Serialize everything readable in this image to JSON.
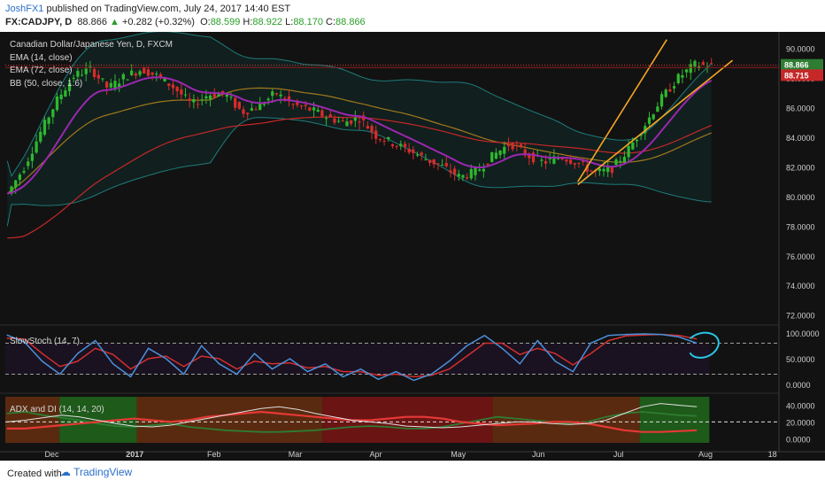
{
  "header": {
    "user": "JoshFX1",
    "published_text": "published on TradingView.com, July 24, 2017 14:40 EST",
    "symbol": "FX:CADJPY, D",
    "last": "88.866",
    "change": "+0.282 (+0.32%)",
    "open_label": "O:",
    "open": "88.599",
    "high_label": "H:",
    "high": "88.922",
    "low_label": "L:",
    "low": "88.170",
    "close_label": "C:",
    "close": "88.866"
  },
  "legend": {
    "title": "Canadian Dollar/Japanese Yen, D, FXCM",
    "ema14": "EMA (14, close)",
    "ema72": "EMA (72, close)",
    "bb": "BB (50, close, 1.6)"
  },
  "colors": {
    "background": "#121212",
    "up": "#2eb82e",
    "down": "#d92b2b",
    "ema14": "#9c27b0",
    "ema72": "#c62828",
    "bb_basis": "#a0781e",
    "bb_band": "#1e7c7c",
    "channel": "#f5a623",
    "stoch_k": "#4a90d9",
    "stoch_d": "#d32f2f",
    "adx": "#e0e0e0",
    "di_plus": "#2e7d32",
    "di_minus": "#e53935",
    "annotation": "#29c5e6"
  },
  "price_labels": {
    "current": "88.866",
    "ema": "88.715"
  },
  "stoch_label": "SlowStoch (14, 7)",
  "adx_label": "ADX and DI (14, 14, 20)",
  "footer": {
    "created_with": "Created with",
    "brand": "TradingView"
  },
  "chart_data": [
    {
      "type": "candlestick",
      "title": "Canadian Dollar/Japanese Yen, D, FXCM",
      "x_ticks": [
        "Dec",
        "2017",
        "Feb",
        "Mar",
        "Apr",
        "May",
        "Jun",
        "Jul",
        "Aug",
        "18"
      ],
      "y_ticks": [
        "90.0000",
        "88.0000",
        "86.0000",
        "84.0000",
        "82.0000",
        "80.0000",
        "78.0000",
        "76.0000",
        "74.0000",
        "72.0000"
      ],
      "ylim": [
        71.5,
        91
      ],
      "close_path": [
        80.2,
        82.0,
        84.4,
        86.6,
        88.2,
        88.6,
        87.3,
        88.1,
        88.6,
        88.1,
        87.3,
        86.2,
        86.9,
        86.9,
        85.7,
        86.1,
        87.0,
        86.2,
        85.9,
        85.4,
        85.0,
        85.3,
        84.1,
        83.6,
        83.1,
        82.5,
        82.0,
        81.3,
        81.7,
        82.8,
        83.6,
        82.8,
        82.3,
        82.7,
        82.3,
        81.6,
        81.8,
        83.1,
        84.8,
        86.6,
        88.0,
        88.9,
        88.87
      ],
      "ema14_last": 88.715,
      "last": 88.866,
      "ema72_note": "EMA (72, close)",
      "bb_note": "BB (50, close, 1.6)"
    },
    {
      "type": "line",
      "title": "SlowStoch (14, 7)",
      "y_ticks": [
        "100.0000",
        "50.0000",
        "0.0000"
      ],
      "ylim": [
        -10,
        110
      ],
      "levels": [
        80,
        20
      ],
      "series_k": [
        96,
        82,
        45,
        20,
        60,
        85,
        40,
        15,
        70,
        50,
        20,
        75,
        40,
        20,
        60,
        30,
        50,
        25,
        40,
        15,
        30,
        10,
        25,
        8,
        20,
        45,
        75,
        95,
        70,
        40,
        85,
        45,
        25,
        80,
        95,
        97,
        98,
        97,
        92,
        80
      ],
      "series_d": [
        90,
        88,
        60,
        35,
        45,
        70,
        58,
        30,
        50,
        55,
        35,
        55,
        50,
        30,
        45,
        40,
        42,
        32,
        35,
        25,
        25,
        18,
        20,
        15,
        18,
        30,
        55,
        80,
        80,
        58,
        70,
        60,
        38,
        60,
        85,
        94,
        96,
        97,
        95,
        88
      ]
    },
    {
      "type": "line",
      "title": "ADX and DI (14, 14, 20)",
      "y_ticks": [
        "40.0000",
        "20.0000",
        "0.0000"
      ],
      "ylim": [
        -5,
        50
      ],
      "level": 20,
      "adx": [
        20,
        22,
        25,
        28,
        26,
        22,
        18,
        15,
        14,
        16,
        20,
        24,
        28,
        32,
        36,
        38,
        35,
        30,
        26,
        22,
        20,
        18,
        15,
        14,
        13,
        14,
        16,
        18,
        20,
        20,
        18,
        17,
        18,
        22,
        30,
        38,
        42,
        40,
        38
      ],
      "di_plus": [
        30,
        32,
        28,
        25,
        22,
        18,
        15,
        14,
        16,
        18,
        14,
        12,
        10,
        9,
        8,
        8,
        9,
        10,
        12,
        14,
        15,
        14,
        12,
        12,
        14,
        18,
        22,
        26,
        24,
        22,
        20,
        18,
        20,
        26,
        30,
        32,
        30,
        28,
        27
      ],
      "di_minus": [
        12,
        12,
        14,
        16,
        18,
        20,
        22,
        24,
        22,
        20,
        22,
        26,
        28,
        30,
        32,
        30,
        28,
        26,
        24,
        22,
        22,
        24,
        26,
        26,
        24,
        20,
        18,
        16,
        17,
        18,
        20,
        20,
        18,
        14,
        10,
        8,
        8,
        9,
        10
      ],
      "regimes": [
        {
          "from": 0.0,
          "to": 0.07,
          "kind": "bear"
        },
        {
          "from": 0.07,
          "to": 0.17,
          "kind": "bull"
        },
        {
          "from": 0.17,
          "to": 0.41,
          "kind": "bear"
        },
        {
          "from": 0.41,
          "to": 0.63,
          "kind": "bear_strong"
        },
        {
          "from": 0.63,
          "to": 0.82,
          "kind": "bear"
        },
        {
          "from": 0.82,
          "to": 0.91,
          "kind": "bull"
        }
      ]
    }
  ]
}
